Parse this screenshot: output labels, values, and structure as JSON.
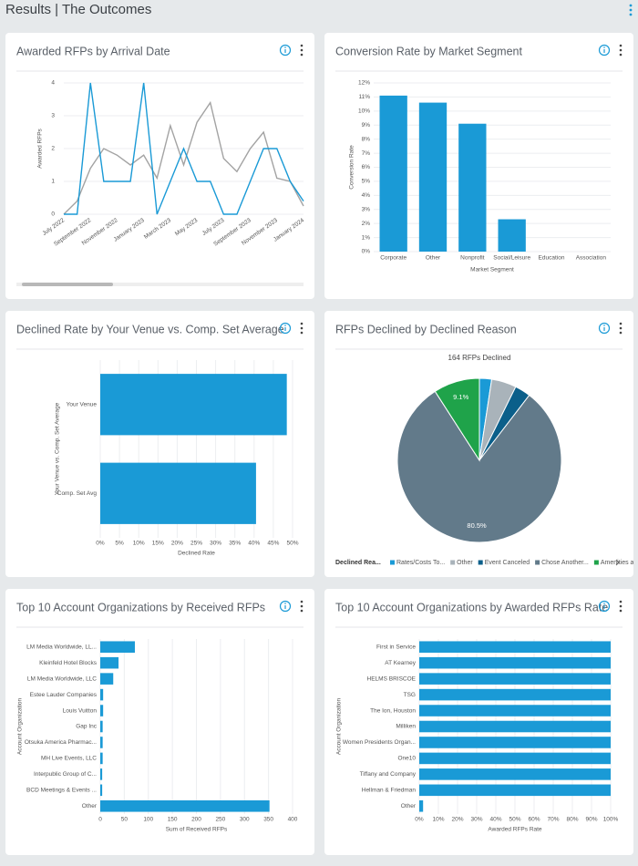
{
  "page_title": "Results | The Outcomes",
  "chart_data": [
    {
      "type": "line",
      "title": "Awarded RFPs by Arrival Date",
      "categories": [
        "July 2022",
        null,
        "September 2022",
        null,
        "November 2022",
        null,
        "January 2023",
        null,
        "March 2023",
        null,
        "May 2023",
        null,
        "July 2023",
        null,
        "September 2023",
        null,
        "November 2023",
        null,
        "January 2024"
      ],
      "series": [
        {
          "color": "#a3a3a3",
          "values": [
            0,
            0.4,
            1.4,
            2,
            1.8,
            1.5,
            1.8,
            1.1,
            2.7,
            1.5,
            2.8,
            3.4,
            1.7,
            1.3,
            2,
            2.5,
            1.1,
            1,
            0.25
          ]
        },
        {
          "color": "#1a9ad6",
          "values": [
            0,
            0,
            4,
            1,
            1,
            1,
            4,
            0,
            1,
            2,
            1,
            1,
            0,
            0,
            1,
            2,
            2,
            1,
            0.4
          ]
        }
      ],
      "y_label": "Awarded RFPs",
      "ylim": [
        0,
        4
      ],
      "yticks": [
        0,
        1,
        2,
        3,
        4
      ],
      "grid": true
    },
    {
      "type": "bar",
      "orientation": "vertical",
      "title": "Conversion Rate by Market Segment",
      "categories": [
        "Corporate",
        "Other",
        "Nonprofit",
        "Social/Leisure",
        "Education",
        "Association"
      ],
      "values": [
        11.1,
        10.6,
        9.1,
        2.3,
        0,
        0
      ],
      "color": "#1a9ad6",
      "x_label": "Market Segment",
      "y_label": "Conversion Rate",
      "ylim": [
        0,
        12
      ],
      "yticks": [
        {
          "value": 0,
          "label": "0%"
        },
        {
          "value": 1,
          "label": "1%"
        },
        {
          "value": 2,
          "label": "2%"
        },
        {
          "value": 3,
          "label": "3%"
        },
        {
          "value": 4,
          "label": "4%"
        },
        {
          "value": 5,
          "label": "5%"
        },
        {
          "value": 6,
          "label": "6%"
        },
        {
          "value": 7,
          "label": "7%"
        },
        {
          "value": 8,
          "label": "8%"
        },
        {
          "value": 9,
          "label": "9%"
        },
        {
          "value": 10,
          "label": "10%"
        },
        {
          "value": 11,
          "label": "11%"
        },
        {
          "value": 12,
          "label": "12%"
        }
      ],
      "grid": true
    },
    {
      "type": "bar",
      "orientation": "horizontal",
      "title": "Declined Rate by Your Venue vs. Comp. Set Average",
      "categories": [
        "Your Venue",
        "Comp. Set Avg"
      ],
      "values": [
        48.5,
        40.5
      ],
      "color": "#1a9ad6",
      "x_label": "Declined Rate",
      "y_label": "Your Venue vs. Comp. Set Average",
      "xlim": [
        0,
        50
      ],
      "xticks": [
        {
          "value": 0,
          "label": "0%"
        },
        {
          "value": 5,
          "label": "5%"
        },
        {
          "value": 10,
          "label": "10%"
        },
        {
          "value": 15,
          "label": "15%"
        },
        {
          "value": 20,
          "label": "20%"
        },
        {
          "value": 25,
          "label": "25%"
        },
        {
          "value": 30,
          "label": "30%"
        },
        {
          "value": 35,
          "label": "35%"
        },
        {
          "value": 40,
          "label": "40%"
        },
        {
          "value": 45,
          "label": "45%"
        },
        {
          "value": 50,
          "label": "50%"
        }
      ],
      "grid": true
    },
    {
      "type": "pie",
      "title": "RFPs Declined by Declined Reason",
      "subtitle": "164 RFPs Declined",
      "categories": [
        "Rates/Costs To...",
        "Other",
        "Event Canceled",
        "Chose Another...",
        "Amenities ar"
      ],
      "values": [
        2.4,
        4.9,
        3.1,
        80.5,
        9.1
      ],
      "value_labels": [
        null,
        null,
        null,
        "80.5%",
        "9.1%"
      ],
      "colors": [
        "#1a9ad6",
        "#a9b3ba",
        "#0b5f8a",
        "#627a8a",
        "#1fa34a"
      ],
      "legend_title": "Declined Rea..."
    },
    {
      "type": "bar",
      "orientation": "horizontal",
      "title": "Top 10 Account Organizations by Received RFPs",
      "categories": [
        "LM Media Worldwide, LL...",
        "Kleinfeld Hotel Blocks",
        "LM Media Worldwide, LLC",
        "Estee Lauder Companies",
        "Louis Vuitton",
        "Gap Inc",
        "Otsuka America Pharmac...",
        "MH Live Events, LLC",
        "Interpublic Group of C...",
        "BCD Meetings & Events ...",
        "Other"
      ],
      "values": [
        72,
        38,
        27,
        6,
        6,
        5,
        5,
        5,
        4,
        4,
        352
      ],
      "color": "#1a9ad6",
      "x_label": "Sum of Received RFPs",
      "y_label": "Account Organization",
      "xlim": [
        0,
        400
      ],
      "xticks": [
        0,
        50,
        100,
        150,
        200,
        250,
        300,
        350,
        400
      ],
      "grid": true
    },
    {
      "type": "bar",
      "orientation": "horizontal",
      "title": "Top 10 Account Organizations by Awarded RFPs Rate",
      "categories": [
        "First in Service",
        "AT Kearney",
        "HELMS BRISCOE",
        "TSG",
        "The Ion, Houston",
        "Milliken",
        "Women Presidents Organ...",
        "One10",
        "Tiffany and Company",
        "Hellman & Friedman",
        "Other"
      ],
      "values": [
        100,
        100,
        100,
        100,
        100,
        100,
        100,
        100,
        100,
        100,
        2
      ],
      "color": "#1a9ad6",
      "x_label": "Awarded RFPs Rate",
      "y_label": "Account Organization",
      "xlim": [
        0,
        100
      ],
      "xticks": [
        {
          "value": 0,
          "label": "0%"
        },
        {
          "value": 10,
          "label": "10%"
        },
        {
          "value": 20,
          "label": "20%"
        },
        {
          "value": 30,
          "label": "30%"
        },
        {
          "value": 40,
          "label": "40%"
        },
        {
          "value": 50,
          "label": "50%"
        },
        {
          "value": 60,
          "label": "60%"
        },
        {
          "value": 70,
          "label": "70%"
        },
        {
          "value": 80,
          "label": "80%"
        },
        {
          "value": 90,
          "label": "90%"
        },
        {
          "value": 100,
          "label": "100%"
        }
      ],
      "grid": true
    }
  ]
}
